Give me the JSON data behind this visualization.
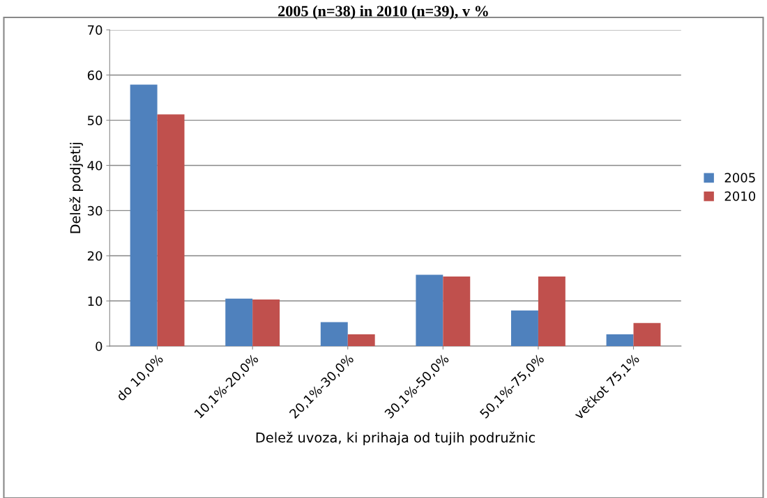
{
  "chart_data": {
    "type": "bar",
    "title": "2005 (n=38) in 2010 (n=39), v %",
    "xlabel": "Delež uvoza, ki prihaja od tujih podružnic",
    "ylabel": "Delež podjetij",
    "categories": [
      "do 10,0%",
      "10,1%-20,0%",
      "20,1%-30,0%",
      "30,1%-50,0%",
      "50,1%-75,0%",
      "večkot 75,1%"
    ],
    "series": [
      {
        "name": "2005",
        "color": "#4f81bd",
        "values": [
          57.9,
          10.5,
          5.3,
          15.8,
          7.9,
          2.6
        ]
      },
      {
        "name": "2010",
        "color": "#c0504d",
        "values": [
          51.3,
          10.3,
          2.6,
          15.4,
          15.4,
          5.1
        ]
      }
    ],
    "ylim": [
      0,
      70
    ],
    "yticks": [
      0,
      10,
      20,
      30,
      40,
      50,
      60,
      70
    ],
    "grid": "y",
    "legend": "right"
  }
}
